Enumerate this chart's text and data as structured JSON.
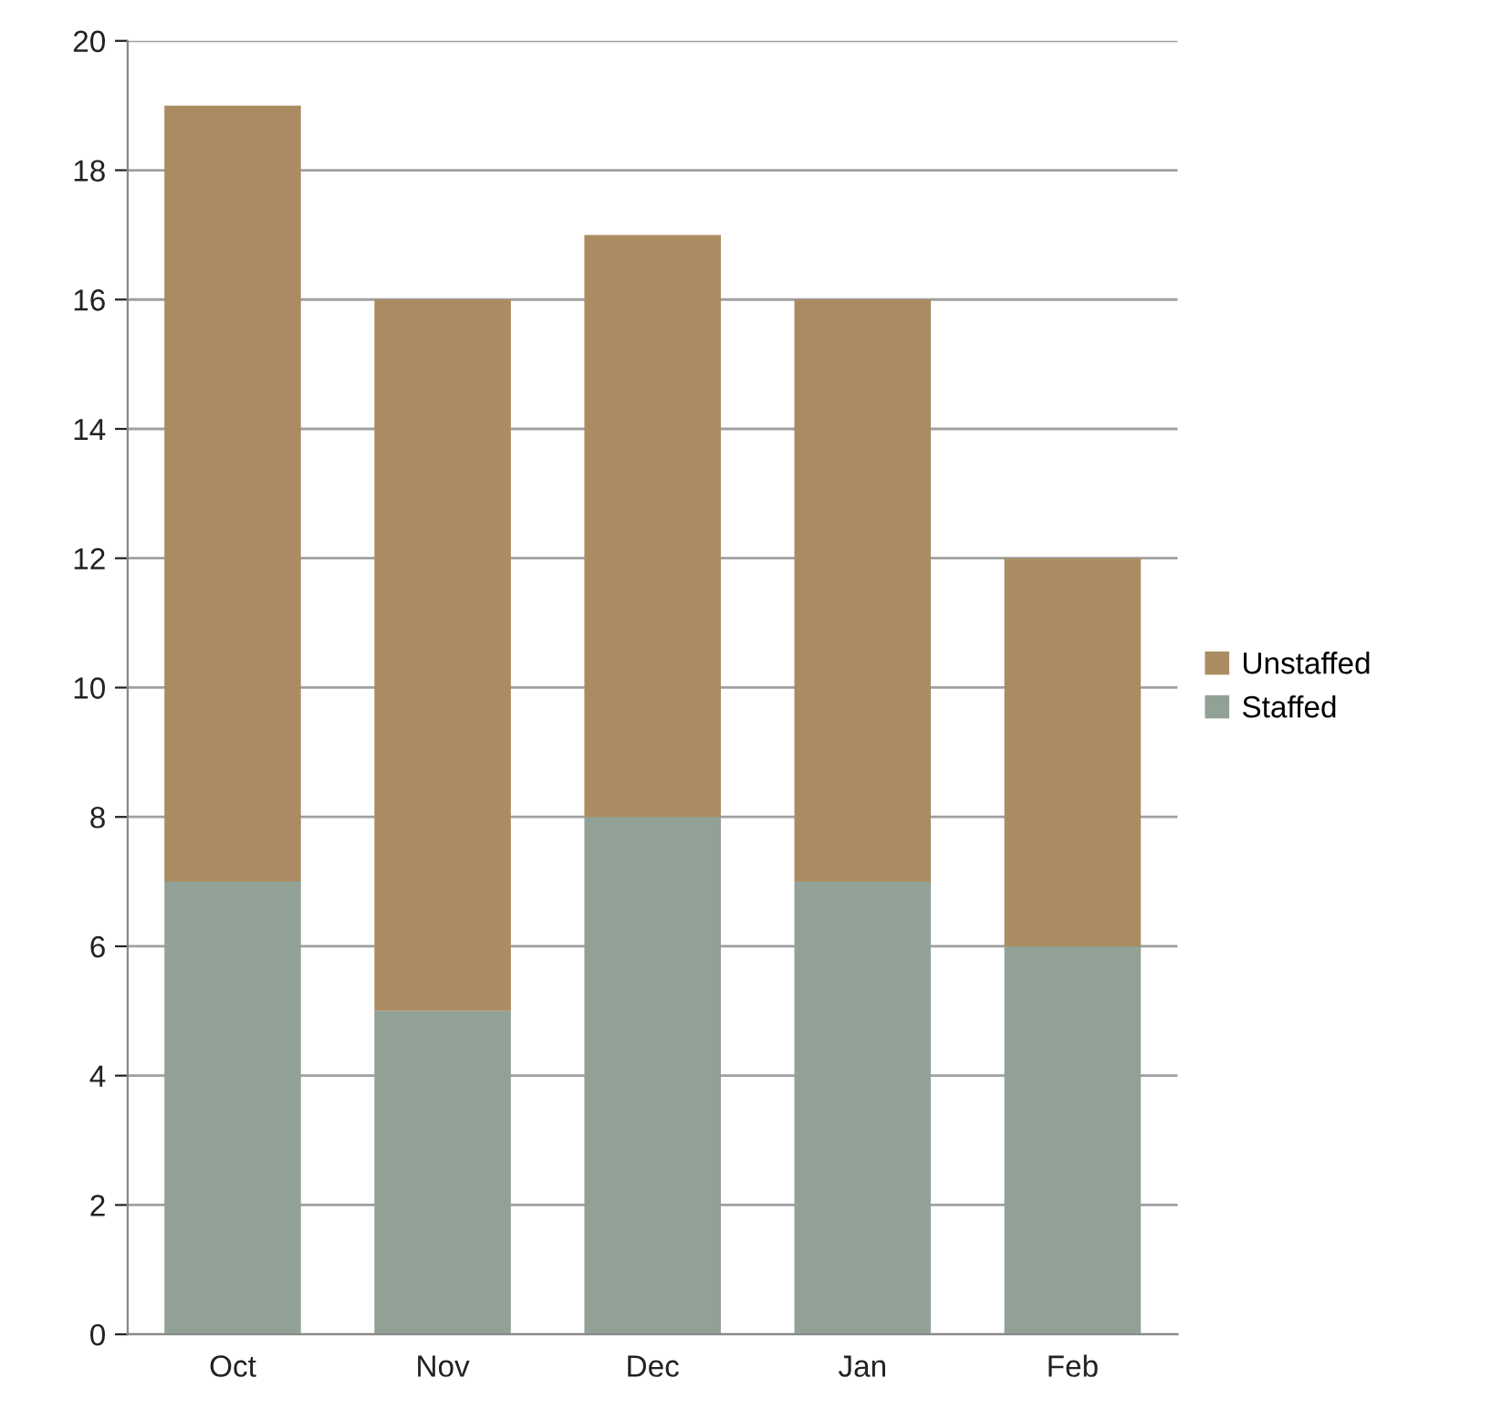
{
  "chart_data": {
    "type": "bar",
    "stacked": true,
    "categories": [
      "Oct",
      "Nov",
      "Dec",
      "Jan",
      "Feb"
    ],
    "series": [
      {
        "name": "Staffed",
        "color": "#92a196",
        "values": [
          7,
          5,
          8,
          7,
          6
        ]
      },
      {
        "name": "Unstaffed",
        "color": "#ab8c62",
        "values": [
          12,
          11,
          9,
          9,
          6
        ]
      }
    ],
    "ylim": [
      0,
      20
    ],
    "yticks": [
      0,
      2,
      4,
      6,
      8,
      10,
      12,
      14,
      16,
      18,
      20
    ],
    "grid": "y",
    "legend": "right"
  }
}
